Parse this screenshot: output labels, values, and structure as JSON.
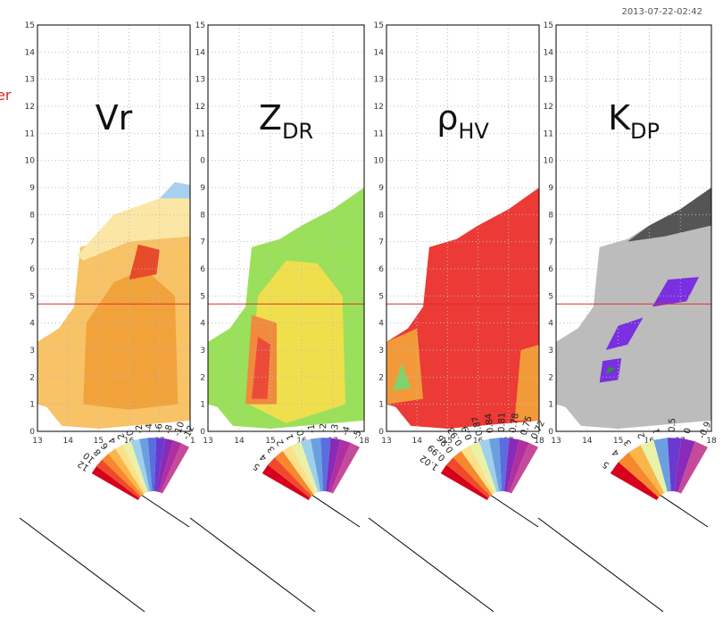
{
  "timestamp": "2013-07-22-02:42",
  "cut_label": "er",
  "panels": [
    {
      "title": "Vr",
      "xlim": [
        13,
        18
      ],
      "ylim": [
        0,
        15
      ],
      "xticks": [
        13,
        14,
        15,
        16,
        17,
        {
          "value": 18,
          "label": "1"
        }
      ],
      "yticks": [
        0,
        1,
        2,
        3,
        4,
        5,
        6,
        7,
        8,
        9,
        10,
        11,
        12,
        13,
        14,
        15
      ],
      "colorbar_labels": [
        "12",
        "10",
        "8",
        "6",
        "4",
        "2",
        "0",
        "-2",
        "-4",
        "-6",
        "-8",
        "-10",
        "-12"
      ]
    },
    {
      "title": "Z",
      "subscript": "DR",
      "xlim": [
        13,
        18
      ],
      "ylim": [
        0,
        15
      ],
      "xticks": [
        13,
        14,
        15,
        16,
        17,
        18
      ],
      "yticks": [
        0,
        1,
        2,
        3,
        4,
        5,
        6,
        7,
        8,
        9,
        {
          "value": 10,
          "label": "0"
        },
        11,
        12,
        13,
        14,
        15
      ],
      "colorbar_labels": [
        "5",
        "4",
        "3",
        "2",
        "1",
        "0",
        "-1",
        "-2",
        "-3",
        "-4",
        "-5"
      ]
    },
    {
      "title": "ρ",
      "subscript": "HV",
      "xlim": [
        13,
        18
      ],
      "ylim": [
        0,
        15
      ],
      "xticks": [
        13,
        14,
        15,
        16,
        17,
        18
      ],
      "yticks": [
        0,
        1,
        2,
        3,
        4,
        5,
        6,
        7,
        8,
        9,
        10,
        11,
        12,
        13,
        14,
        15
      ],
      "colorbar_labels": [
        "1.02",
        "0.99",
        "0.96",
        "0.93",
        "0.9",
        "0.87",
        "0.84",
        "0.81",
        "0.78",
        "0.75",
        "0.72"
      ]
    },
    {
      "title": "K",
      "subscript": "DP",
      "xlim": [
        13,
        18
      ],
      "ylim": [
        0,
        15
      ],
      "xticks": [
        13,
        14,
        15,
        16,
        17,
        18
      ],
      "yticks": [
        0,
        1,
        2,
        3,
        4,
        5,
        6,
        7,
        8,
        9,
        10,
        11,
        12,
        13,
        14,
        15
      ],
      "colorbar_labels": [
        "5",
        "4",
        "3",
        "2",
        "1",
        "0.5",
        "0",
        "-0.9"
      ]
    }
  ]
}
